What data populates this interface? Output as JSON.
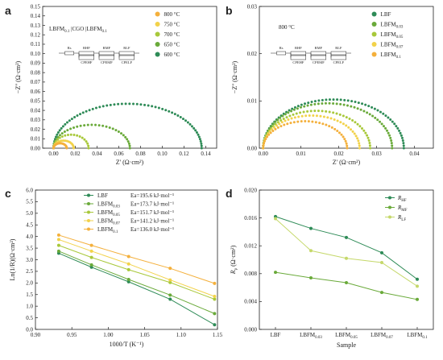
{
  "colors": {
    "c600": "#2e8b57",
    "c650": "#6aaa3a",
    "c700": "#a8c83a",
    "c750": "#f2d24a",
    "c800": "#f4b03c",
    "rHF": "#2e8b57",
    "rMF": "#6aaa3a",
    "rLF": "#c5d86a"
  },
  "circuit_labels": [
    "Rs",
    "RHF",
    "RMF",
    "RLF",
    "CPEHF",
    "CPEMF",
    "CPELF"
  ],
  "chart_data": [
    {
      "panel": "a",
      "type": "scatter",
      "annotation": "LBFM0.1 |CGO |LBFM0.1",
      "xlabel": "Z' (Ω·cm²)",
      "ylabel": "−Z'' (Ω·cm²)",
      "xlim": [
        -0.01,
        0.15
      ],
      "ylim": [
        0,
        0.15
      ],
      "xticks": [
        "0.00",
        "0.02",
        "0.04",
        "0.06",
        "0.08",
        "0.10",
        "0.12",
        "0.14"
      ],
      "yticks": [
        "0.00",
        "0.01",
        "0.02",
        "0.03",
        "0.04",
        "0.05",
        "0.06",
        "0.07",
        "0.08",
        "0.09",
        "0.10",
        "0.11",
        "0.12",
        "0.13",
        "0.14",
        "0.15"
      ],
      "legend_loc": "right",
      "series": [
        {
          "name": "800 °C",
          "colorKey": "c800",
          "r0": 0.0,
          "r1": 0.0121,
          "peak": 0.0052
        },
        {
          "name": "750 °C",
          "colorKey": "c750",
          "r0": 0.0,
          "r1": 0.0185,
          "peak": 0.008
        },
        {
          "name": "700 °C",
          "colorKey": "c700",
          "r0": 0.0,
          "r1": 0.0322,
          "peak": 0.0143
        },
        {
          "name": "650 °C",
          "colorKey": "c650",
          "r0": 0.0,
          "r1": 0.0702,
          "peak": 0.0247
        },
        {
          "name": "600 °C",
          "colorKey": "c600",
          "r0": 0.0,
          "r1": 0.1362,
          "peak": 0.047
        }
      ]
    },
    {
      "panel": "b",
      "type": "scatter",
      "annotation": "800 °C",
      "xlabel": "Z' (Ω·cm²)",
      "ylabel": "−Z'' (Ω·cm²)",
      "xlim": [
        -0.001,
        0.045
      ],
      "ylim": [
        0,
        0.03
      ],
      "xticks": [
        "0.00",
        "0.01",
        "0.02",
        "0.03",
        "0.04"
      ],
      "yticks": [
        "0.00",
        "0.01",
        "0.02",
        "0.03"
      ],
      "legend_loc": "right",
      "series": [
        {
          "name": "LBF",
          "sub": "",
          "colorKey": "c600",
          "r0": 0.0,
          "r1": 0.0372,
          "peak": 0.0103
        },
        {
          "name": "LBFM",
          "sub": "0.03",
          "colorKey": "c650",
          "r0": 0.0,
          "r1": 0.0341,
          "peak": 0.0095
        },
        {
          "name": "LBFM",
          "sub": "0.05",
          "colorKey": "c700",
          "r0": 0.0,
          "r1": 0.0283,
          "peak": 0.0079
        },
        {
          "name": "LBFM",
          "sub": "0.07",
          "colorKey": "c750",
          "r0": 0.0,
          "r1": 0.0255,
          "peak": 0.0069
        },
        {
          "name": "LBFM",
          "sub": "0.1",
          "colorKey": "c800",
          "r0": 0.0,
          "r1": 0.0222,
          "peak": 0.0057
        }
      ]
    },
    {
      "panel": "c",
      "type": "line",
      "xlabel": "1000/T (K⁻¹)",
      "ylabel": "Ln(1/R)(Ω·cm²)",
      "xlim": [
        0.9,
        1.15
      ],
      "ylim": [
        0,
        6
      ],
      "xticks": [
        "0.90",
        "0.95",
        "1.00",
        "1.05",
        "1.10",
        "1.15"
      ],
      "yticks": [
        "0.0",
        "0.5",
        "1.0",
        "1.5",
        "2.0",
        "2.5",
        "3.0",
        "3.5",
        "4.0",
        "4.5",
        "5.0",
        "5.5",
        "6.0"
      ],
      "x": [
        0.932,
        0.977,
        1.028,
        1.085,
        1.146
      ],
      "legend_loc": "top-right",
      "series": [
        {
          "name": "LBF",
          "sub": "",
          "ea": "Ea=195.6 kJ·mol⁻¹",
          "colorKey": "c600",
          "values": [
            3.28,
            2.68,
            2.05,
            1.3,
            0.2
          ]
        },
        {
          "name": "LBFM",
          "sub": "0.03",
          "ea": "Ea=173.7 kJ·mol⁻¹",
          "colorKey": "c650",
          "values": [
            3.37,
            2.78,
            2.15,
            1.48,
            0.68
          ]
        },
        {
          "name": "LBFM",
          "sub": "0.05",
          "ea": "Ea=151.7 kJ·mol⁻¹",
          "colorKey": "c700",
          "values": [
            3.62,
            3.1,
            2.57,
            2.02,
            1.3
          ]
        },
        {
          "name": "LBFM",
          "sub": "0.07",
          "ea": "Ea=141.2 kJ·mol⁻¹",
          "colorKey": "c750",
          "values": [
            3.87,
            3.37,
            2.82,
            2.13,
            1.42
          ]
        },
        {
          "name": "LBFM",
          "sub": "0.1",
          "ea": "Ea=136.0 kJ·mol⁻¹",
          "colorKey": "c800",
          "values": [
            4.06,
            3.62,
            3.14,
            2.63,
            1.98
          ]
        }
      ]
    },
    {
      "panel": "d",
      "type": "line",
      "xlabel": "Sample",
      "ylabel": "Rp (Ω·cm²)",
      "ylim": [
        0,
        0.02
      ],
      "yticks": [
        "0.000",
        "0.004",
        "0.008",
        "0.012",
        "0.016",
        "0.020"
      ],
      "categories": [
        {
          "name": "LBF",
          "sub": ""
        },
        {
          "name": "LBFM",
          "sub": "0.03"
        },
        {
          "name": "LBFM",
          "sub": "0.05"
        },
        {
          "name": "LBFM",
          "sub": "0.07"
        },
        {
          "name": "LBFM",
          "sub": "0.1"
        }
      ],
      "legend_loc": "top-right",
      "series": [
        {
          "name": "R",
          "sub": "HF",
          "colorKey": "rHF",
          "values": [
            0.0162,
            0.0145,
            0.0132,
            0.011,
            0.0072
          ]
        },
        {
          "name": "R",
          "sub": "MF",
          "colorKey": "rMF",
          "values": [
            0.0082,
            0.0074,
            0.0067,
            0.0053,
            0.0043
          ]
        },
        {
          "name": "R",
          "sub": "LF",
          "colorKey": "rLF",
          "values": [
            0.0159,
            0.0113,
            0.0102,
            0.0096,
            0.0062
          ]
        }
      ]
    }
  ]
}
